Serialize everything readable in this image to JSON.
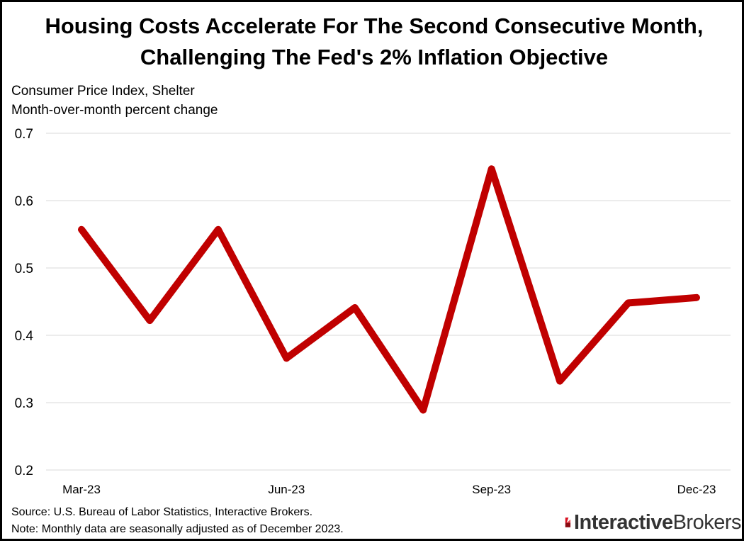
{
  "title_line1": "Housing Costs Accelerate For The Second Consecutive Month,",
  "title_line2": "Challenging The Fed's 2% Inflation Objective",
  "subtitle_line1": "Consumer Price Index, Shelter",
  "subtitle_line2": "Month-over-month percent change",
  "source": "Source: U.S. Bureau of Labor Statistics, Interactive Brokers.",
  "note": "Note: Monthly data are seasonally adjusted as of December 2023.",
  "logo": {
    "part1": "Interactive",
    "part2": "Brokers",
    "icon": "interactive-brokers-logo-icon"
  },
  "colors": {
    "line": "#c00000",
    "grid": "#d9d9d9",
    "logo_accent": "#d81222"
  },
  "chart_data": {
    "type": "line",
    "title": "Housing Costs Accelerate For The Second Consecutive Month, Challenging The Fed's 2% Inflation Objective",
    "ylabel": "Consumer Price Index, Shelter — Month-over-month percent change",
    "categories": [
      "Mar-23",
      "Apr-23",
      "May-23",
      "Jun-23",
      "Jul-23",
      "Aug-23",
      "Sep-23",
      "Oct-23",
      "Nov-23",
      "Dec-23"
    ],
    "x_tick_labels": [
      "Mar-23",
      "Jun-23",
      "Sep-23",
      "Dec-23"
    ],
    "x_tick_indices": [
      0,
      3,
      6,
      9
    ],
    "series": [
      {
        "values": [
          0.557,
          0.422,
          0.557,
          0.366,
          0.441,
          0.289,
          0.647,
          0.332,
          0.448,
          0.456
        ]
      }
    ],
    "ylim": [
      0.2,
      0.7
    ],
    "yticks": [
      0.2,
      0.3,
      0.4,
      0.5,
      0.6,
      0.7
    ],
    "y_tick_labels": [
      "0.2",
      "0.3",
      "0.4",
      "0.5",
      "0.6",
      "0.7"
    ],
    "grid": true,
    "legend": "none"
  }
}
